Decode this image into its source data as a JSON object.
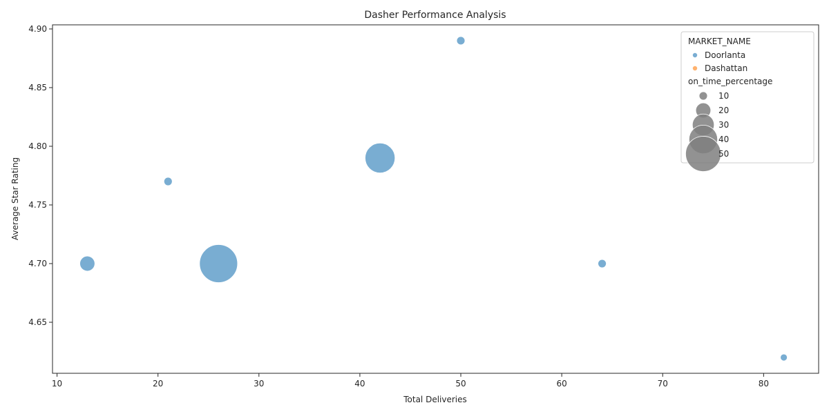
{
  "chart_data": {
    "type": "scatter",
    "title": "Dasher Performance Analysis",
    "xlabel": "Total Deliveries",
    "ylabel": "Average Star Rating",
    "xlim": [
      9.55,
      85.45
    ],
    "ylim": [
      4.6065,
      4.9035
    ],
    "xticks": [
      10,
      20,
      30,
      40,
      50,
      60,
      70,
      80
    ],
    "yticks": [
      4.65,
      4.7,
      4.75,
      4.8,
      4.85,
      4.9
    ],
    "grid": false,
    "legend_position": "top-right",
    "hue_title": "MARKET_NAME",
    "size_title": "on_time_percentage",
    "markets": [
      {
        "name": "Doorlanta",
        "color": "#1f77b4"
      },
      {
        "name": "Dashattan",
        "color": "#ff7f0e"
      }
    ],
    "size_levels": [
      10,
      20,
      30,
      40,
      50
    ],
    "size_range": [
      10,
      55
    ],
    "points": [
      {
        "x": 50,
        "y": 4.89,
        "market": "Doorlanta",
        "on_time_percentage": 10
      },
      {
        "x": 42,
        "y": 4.79,
        "market": "Doorlanta",
        "on_time_percentage": 42
      },
      {
        "x": 21,
        "y": 4.77,
        "market": "Doorlanta",
        "on_time_percentage": 10
      },
      {
        "x": 13,
        "y": 4.7,
        "market": "Doorlanta",
        "on_time_percentage": 20
      },
      {
        "x": 26,
        "y": 4.7,
        "market": "Doorlanta",
        "on_time_percentage": 54
      },
      {
        "x": 64,
        "y": 4.7,
        "market": "Doorlanta",
        "on_time_percentage": 10
      },
      {
        "x": 82,
        "y": 4.62,
        "market": "Doorlanta",
        "on_time_percentage": 8
      }
    ]
  }
}
